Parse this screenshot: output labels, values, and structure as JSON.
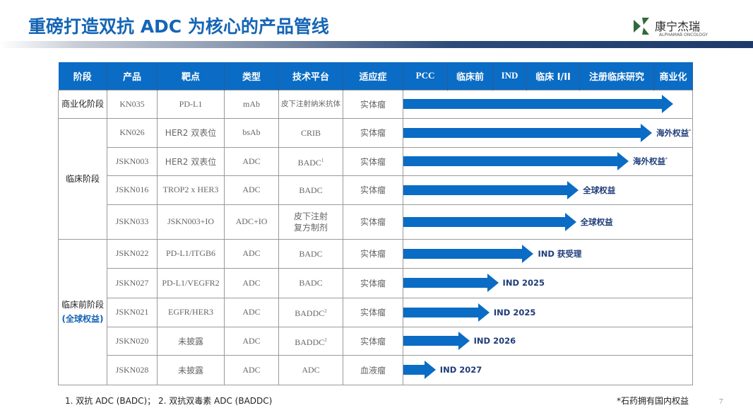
{
  "title": "重磅打造双抗 ADC 为核心的产品管线",
  "logo": {
    "cn": "康宁杰瑞",
    "en": "ALPHAMAB ONCOLOGY"
  },
  "headers": [
    "阶段",
    "产品",
    "靶点",
    "类型",
    "技术平台",
    "适应症"
  ],
  "phases": [
    "PCC",
    "临床前",
    "IND",
    "临床 I/II",
    "注册临床研究",
    "商业化"
  ],
  "stages": {
    "commercial": "商业化阶段",
    "clinical": "临床阶段",
    "preclinical": "临床前阶段",
    "preclinical_sub": "(全球权益)"
  },
  "rows": [
    {
      "product": "KN035",
      "target": "PD-L1",
      "type": "mAb",
      "platform": "皮下注射纳米抗体",
      "indication": "实体瘤",
      "progress": 0.934,
      "label": ""
    },
    {
      "product": "KN026",
      "target": "HER2 双表位",
      "type": "bsAb",
      "platform": "CRIB",
      "indication": "实体瘤",
      "progress": 0.861,
      "label": "海外权益",
      "mark": "*"
    },
    {
      "product": "JSKN003",
      "target": "HER2 双表位",
      "type": "ADC",
      "platform": "BADC",
      "platform_sup": "1",
      "indication": "实体瘤",
      "progress": 0.78,
      "label": "海外权益",
      "mark": "*"
    },
    {
      "product": "JSKN016",
      "target": "TROP2 x HER3",
      "type": "ADC",
      "platform": "BADC",
      "indication": "实体瘤",
      "progress": 0.607,
      "label": "全球权益"
    },
    {
      "product": "JSKN033",
      "target": "JSKN003+IO",
      "type": "ADC+IO",
      "platform": "皮下注射",
      "platform2": "复方制剂",
      "indication": "实体瘤",
      "progress": 0.598,
      "label": "全球权益"
    },
    {
      "product": "JSKN022",
      "target": "PD-L1/ITGB6",
      "type": "ADC",
      "platform": "BADC",
      "indication": "实体瘤",
      "progress": 0.451,
      "label": "IND 获受理"
    },
    {
      "product": "JSKN027",
      "target": "PD-L1/VEGFR2",
      "type": "ADC",
      "platform": "BADC",
      "indication": "实体瘤",
      "progress": 0.329,
      "label": "IND 2025"
    },
    {
      "product": "JSKN021",
      "target": "EGFR/HER3",
      "type": "ADC",
      "platform": "BADDC",
      "platform_sup": "2",
      "indication": "实体瘤",
      "progress": 0.298,
      "label": "IND 2025"
    },
    {
      "product": "JSKN020",
      "target": "未披露",
      "type": "ADC",
      "platform": "BADDC",
      "platform_sup": "2",
      "indication": "实体瘤",
      "progress": 0.229,
      "label": "IND 2026"
    },
    {
      "product": "JSKN028",
      "target": "未披露",
      "type": "ADC",
      "platform": "ADC",
      "indication": "血液瘤",
      "progress": 0.112,
      "label": "IND 2027"
    }
  ],
  "footnote": "1. 双抗 ADC (BADC)；  2. 双抗双毒素 ADC (BADDC)",
  "rights_note": "*石药拥有国内权益",
  "page": "7",
  "colors": {
    "accent": "#0a6cc4",
    "title": "#1565b5",
    "label": "#1f3c7a"
  }
}
